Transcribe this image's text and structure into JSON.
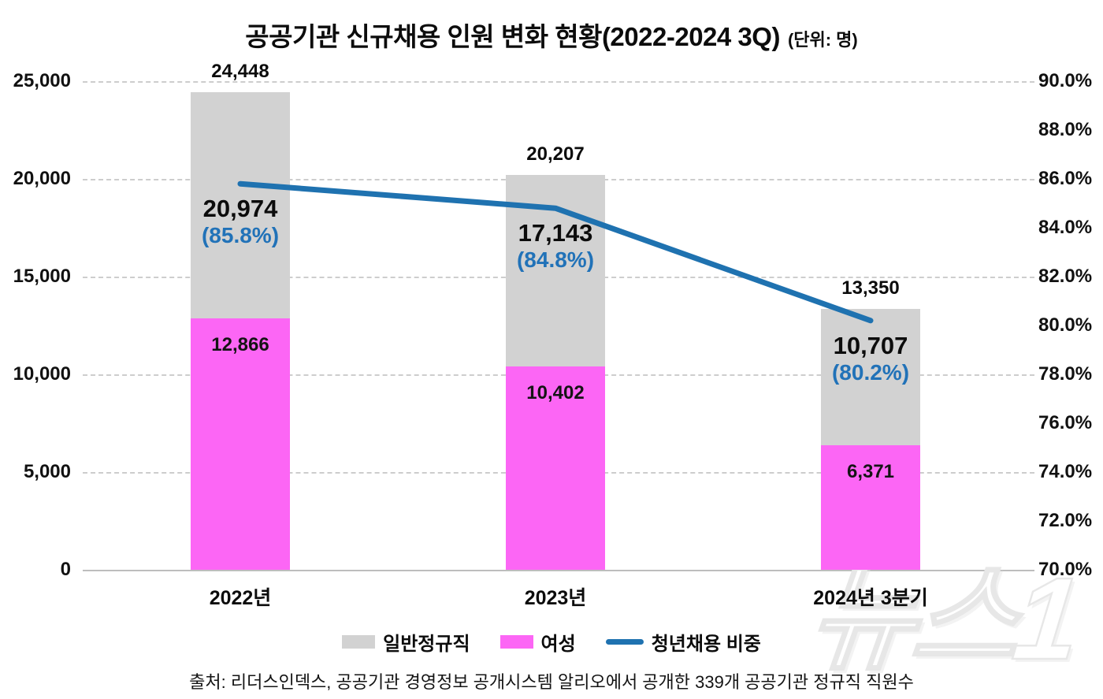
{
  "title": {
    "text": "공공기관 신규채용 인원 변화 현황(2022-2024 3Q)",
    "unit": "(단위: 명)"
  },
  "source": "출처: 리더스인덱스, 공공기관 경영정보 공개시스템 알리오에서 공개한 339개 공공기관 정규직 직원수",
  "watermark": "뉴스1",
  "colors": {
    "bar_total": "#d2d2d2",
    "bar_women": "#fc66f5",
    "line": "#1f72b0",
    "pct_label": "#2172b8",
    "grid": "#cdcdcd",
    "axis": "#bdbdbd"
  },
  "legend": [
    {
      "label": "일반정규직",
      "type": "box",
      "color_key": "bar_total"
    },
    {
      "label": "여성",
      "type": "box",
      "color_key": "bar_women"
    },
    {
      "label": "청년채용 비중",
      "type": "line",
      "color_key": "line"
    }
  ],
  "chart_data": {
    "type": "bar+line",
    "title": "공공기관 신규채용 인원 변화 현황(2022-2024 3Q)",
    "unit": "명",
    "categories": [
      "2022년",
      "2023년",
      "2024년 3분기"
    ],
    "series": [
      {
        "name": "일반정규직",
        "type": "bar",
        "axis": "left",
        "values": [
          24448,
          20207,
          13350
        ],
        "labels": [
          "24,448",
          "20,207",
          "13,350"
        ]
      },
      {
        "name": "여성",
        "type": "bar",
        "axis": "left",
        "values": [
          12866,
          10402,
          6371
        ],
        "labels": [
          "12,866",
          "10,402",
          "6,371"
        ]
      },
      {
        "name": "청년채용 비중",
        "type": "line",
        "axis": "right",
        "values_pct": [
          85.8,
          84.8,
          80.2
        ],
        "counts": [
          20974,
          17143,
          10707
        ],
        "labels_count": [
          "20,974",
          "17,143",
          "10,707"
        ],
        "labels_pct": [
          "(85.8%)",
          "(84.8%)",
          "(80.2%)"
        ]
      }
    ],
    "left_axis": {
      "min": 0,
      "max": 25000,
      "ticks": [
        {
          "v": 0,
          "label": "0"
        },
        {
          "v": 5000,
          "label": "5,000"
        },
        {
          "v": 10000,
          "label": "10,000"
        },
        {
          "v": 15000,
          "label": "15,000"
        },
        {
          "v": 20000,
          "label": "20,000"
        },
        {
          "v": 25000,
          "label": "25,000"
        }
      ]
    },
    "right_axis": {
      "min": 70,
      "max": 90,
      "ticks": [
        {
          "v": 70,
          "label": "70.0%"
        },
        {
          "v": 72,
          "label": "72.0%"
        },
        {
          "v": 74,
          "label": "74.0%"
        },
        {
          "v": 76,
          "label": "76.0%"
        },
        {
          "v": 78,
          "label": "78.0%"
        },
        {
          "v": 80,
          "label": "80.0%"
        },
        {
          "v": 82,
          "label": "82.0%"
        },
        {
          "v": 84,
          "label": "84.0%"
        },
        {
          "v": 86,
          "label": "86.0%"
        },
        {
          "v": 88,
          "label": "88.0%"
        },
        {
          "v": 90,
          "label": "90.0%"
        }
      ],
      "grid_on": "left-ticks-only",
      "legend_position": "bottom"
    }
  }
}
